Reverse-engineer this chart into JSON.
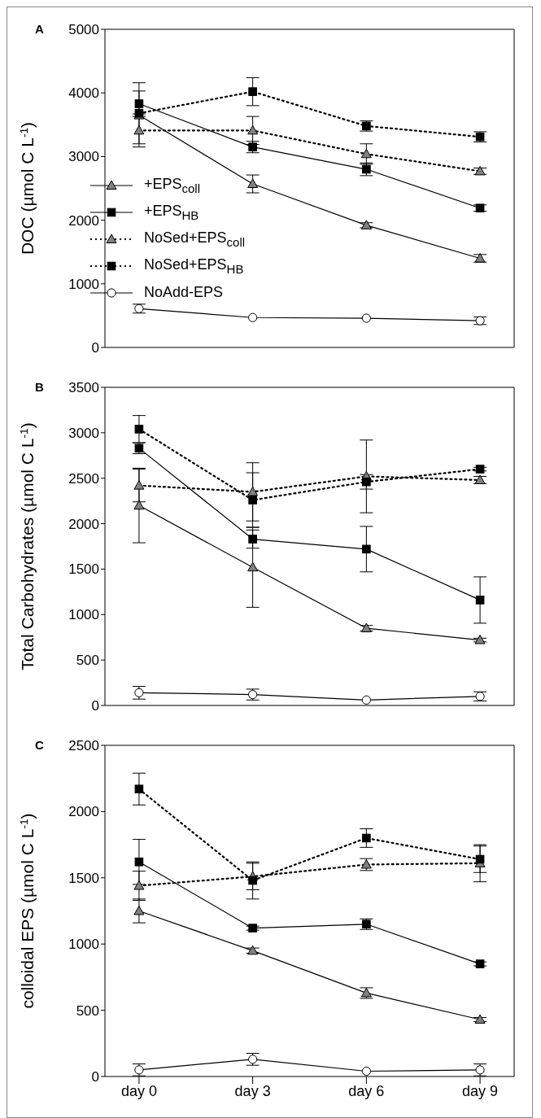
{
  "chart_data": [
    {
      "type": "line",
      "title": "A",
      "ylabel": "DOC (µmol C L$^{-1}$)",
      "categories": [
        null,
        null,
        null,
        null
      ],
      "ylim": [
        0,
        5000
      ],
      "yticks": [
        0,
        1000,
        2000,
        3000,
        4000,
        5000
      ],
      "tick_labels": "y",
      "grid": false,
      "legend": "left",
      "series": [
        {
          "name": "+EPS$_{coll}$",
          "color": "#808080",
          "marker": "triangle",
          "line_style": "solid",
          "values": [
            3650,
            2570,
            1920,
            1400
          ],
          "errors": [
            null,
            140,
            40,
            60
          ]
        },
        {
          "name": "+EPS$_{HB}$",
          "color": "#000000",
          "marker": "square",
          "line_style": "solid",
          "values": [
            3830,
            3150,
            2800,
            2190
          ],
          "errors": [
            200,
            90,
            100,
            50
          ]
        },
        {
          "name": "NoSed+EPS$_{coll}$",
          "color": "#808080",
          "marker": "triangle",
          "line_style": "dotted",
          "values": [
            3410,
            3410,
            3040,
            2770
          ],
          "errors": [
            260,
            220,
            160,
            50
          ]
        },
        {
          "name": "NoSed+EPS$_{HB}$",
          "color": "#000000",
          "marker": "square",
          "line_style": "dotted",
          "values": [
            3680,
            4020,
            3480,
            3310
          ],
          "errors": [
            480,
            220,
            80,
            80
          ]
        },
        {
          "name": "NoAdd-EPS",
          "color": "#ffffff",
          "marker": "circle",
          "line_style": "solid",
          "values": [
            610,
            470,
            460,
            420
          ],
          "errors": [
            70,
            null,
            null,
            60
          ]
        }
      ]
    },
    {
      "type": "line",
      "title": "B",
      "ylabel": "Total Carbohydrates (µmol C L$^{-1}$)",
      "categories": [
        null,
        null,
        null,
        null
      ],
      "ylim": [
        0,
        3500
      ],
      "yticks": [
        0,
        500,
        1000,
        1500,
        2000,
        2500,
        3000,
        3500
      ],
      "tick_labels": "y",
      "grid": false,
      "series": [
        {
          "color": "#808080",
          "marker": "triangle",
          "line_style": "solid",
          "values": [
            2200,
            1520,
            850,
            720
          ],
          "errors": [
            410,
            440,
            30,
            20
          ]
        },
        {
          "color": "#000000",
          "marker": "square",
          "line_style": "solid",
          "values": [
            2830,
            1830,
            1720,
            1160
          ],
          "errors": [
            60,
            100,
            250,
            255
          ]
        },
        {
          "color": "#808080",
          "marker": "triangle",
          "line_style": "dotted",
          "values": [
            2420,
            2350,
            2520,
            2480
          ],
          "errors": [
            180,
            320,
            400,
            40
          ]
        },
        {
          "color": "#000000",
          "marker": "square",
          "line_style": "dotted",
          "values": [
            3040,
            2260,
            2460,
            2600
          ],
          "errors": [
            150,
            300,
            80,
            20
          ]
        },
        {
          "color": "#ffffff",
          "marker": "circle",
          "line_style": "solid",
          "values": [
            140,
            120,
            60,
            100
          ],
          "errors": [
            70,
            60,
            null,
            50
          ]
        }
      ]
    },
    {
      "type": "line",
      "title": "C",
      "ylabel": "colloidal EPS (µmol C L$^{-1}$)",
      "categories": [
        "day 0",
        "day 3",
        "day 6",
        "day 9"
      ],
      "ylim": [
        0,
        2500
      ],
      "yticks": [
        0,
        500,
        1000,
        1500,
        2000,
        2500
      ],
      "grid": false,
      "series": [
        {
          "color": "#808080",
          "marker": "triangle",
          "line_style": "solid",
          "values": [
            1250,
            950,
            630,
            430
          ],
          "errors": [
            90,
            20,
            40,
            15
          ]
        },
        {
          "color": "#000000",
          "marker": "square",
          "line_style": "solid",
          "values": [
            1620,
            1120,
            1150,
            850
          ],
          "errors": [
            170,
            15,
            40,
            15
          ]
        },
        {
          "color": "#808080",
          "marker": "triangle",
          "line_style": "dotted",
          "values": [
            1440,
            1510,
            1600,
            1610
          ],
          "errors": [
            110,
            100,
            45,
            140
          ]
        },
        {
          "color": "#000000",
          "marker": "square",
          "line_style": "dotted",
          "values": [
            2170,
            1480,
            1800,
            1640
          ],
          "errors": [
            120,
            140,
            70,
            100
          ]
        },
        {
          "color": "#ffffff",
          "marker": "circle",
          "line_style": "solid",
          "values": [
            50,
            130,
            40,
            50
          ],
          "errors": [
            45,
            45,
            null,
            45
          ]
        }
      ]
    }
  ]
}
